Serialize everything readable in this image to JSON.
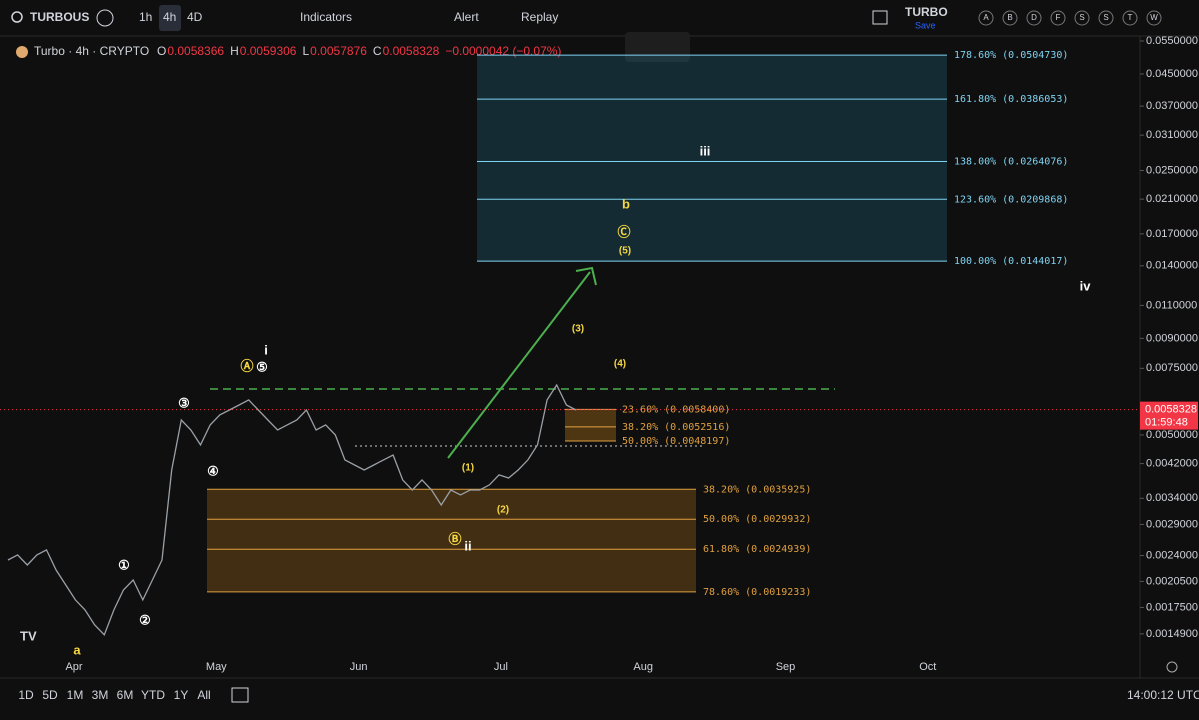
{
  "toolbar": {
    "symbol": "TURBOUS",
    "intervals": [
      "1h",
      "4h",
      "4D"
    ],
    "indicators": "Indicators",
    "alert": "Alert",
    "replay": "Replay",
    "layout_name": "TURBO",
    "save": "Save",
    "letters": [
      "A",
      "B",
      "D",
      "F",
      "S",
      "S",
      "T",
      "W"
    ]
  },
  "legend": {
    "title": "Turbo · 4h · CRYPTO",
    "items": [
      {
        "k": "O",
        "v": "0.0058366"
      },
      {
        "k": "H",
        "v": "0.0059306"
      },
      {
        "k": "L",
        "v": "0.0057876"
      },
      {
        "k": "C",
        "v": "0.0058328"
      }
    ],
    "change": "−0.0000042 (−0.07%)"
  },
  "chart": {
    "log": true,
    "ylim": [
      0.00131,
      0.0588
    ],
    "yticks": [
      {
        "value": 0.055,
        "label": "0.0550000"
      },
      {
        "value": 0.045,
        "label": "0.0450000"
      },
      {
        "value": 0.037,
        "label": "0.0370000"
      },
      {
        "value": 0.031,
        "label": "0.0310000"
      },
      {
        "value": 0.025,
        "label": "0.0250000"
      },
      {
        "value": 0.021,
        "label": "0.0210000"
      },
      {
        "value": 0.017,
        "label": "0.0170000"
      },
      {
        "value": 0.014,
        "label": "0.0140000"
      },
      {
        "value": 0.011,
        "label": "0.0110000"
      },
      {
        "value": 0.009,
        "label": "0.0090000"
      },
      {
        "value": 0.0075,
        "label": "0.0075000"
      },
      {
        "value": 0.005,
        "label": "0.0050000"
      },
      {
        "value": 0.0042,
        "label": "0.0042000"
      },
      {
        "value": 0.0034,
        "label": "0.0034000"
      },
      {
        "value": 0.0029,
        "label": "0.0029000"
      },
      {
        "value": 0.0024,
        "label": "0.0024000"
      },
      {
        "value": 0.00205,
        "label": "0.0020500"
      },
      {
        "value": 0.00175,
        "label": "0.0017500"
      },
      {
        "value": 0.00149,
        "label": "0.0014900"
      }
    ],
    "last_price": {
      "value": 0.0058328,
      "label": "0.0058328"
    },
    "countdown": "01:59:48",
    "months": [
      "Apr",
      "May",
      "Jun",
      "Jul",
      "Aug",
      "Sep",
      "Oct"
    ],
    "price_series": [
      0.002335,
      0.002409,
      0.002266,
      0.002409,
      0.002483,
      0.002198,
      0.002006,
      0.001832,
      0.001724,
      0.001574,
      0.001481,
      0.001724,
      0.001947,
      0.002068,
      0.001832,
      0.002068,
      0.002335,
      0.00404,
      0.005476,
      0.005152,
      0.004706,
      0.005314,
      0.005649,
      0.00582,
      0.006001,
      0.006187,
      0.00582,
      0.005476,
      0.005152,
      0.005314,
      0.005476,
      0.00582,
      0.005152,
      0.005314,
      0.005,
      0.004294,
      0.004165,
      0.00404,
      0.004165,
      0.004294,
      0.004425,
      0.003802,
      0.003577,
      0.003802,
      0.003577,
      0.003265,
      0.003577,
      0.003471,
      0.003577,
      0.003577,
      0.003688,
      0.00392,
      0.003847,
      0.00404,
      0.004294,
      0.004706,
      0.006187,
      0.006776,
      0.006001,
      0.00582
    ],
    "fib_upper": [
      {
        "value": 0.050473,
        "label": "178.60% (0.0504730)"
      },
      {
        "value": 0.0386053,
        "label": "161.80% (0.0386053)"
      },
      {
        "value": 0.0264076,
        "label": "138.00% (0.0264076)"
      },
      {
        "value": 0.0209868,
        "label": "123.60% (0.0209868)"
      },
      {
        "value": 0.0144017,
        "label": "100.00% (0.0144017)"
      }
    ],
    "fib_small": [
      {
        "value": 0.00584,
        "label": "23.60% (0.0058400)"
      },
      {
        "value": 0.0052516,
        "label": "38.20% (0.0052516)"
      },
      {
        "value": 0.0048197,
        "label": "50.00% (0.0048197)"
      }
    ],
    "fib_lower": [
      {
        "value": 0.0035925,
        "label": "38.20% (0.0035925)"
      },
      {
        "value": 0.0029932,
        "label": "50.00% (0.0029932)"
      },
      {
        "value": 0.0024939,
        "label": "61.80% (0.0024939)"
      },
      {
        "value": 0.0019233,
        "label": "78.60% (0.0019233)"
      }
    ],
    "waves": [
      "i",
      "Ⓐ",
      "⑤",
      "③",
      "④",
      "①",
      "②",
      "Ⓑ",
      "ii",
      "(1)",
      "(2)",
      "(3)",
      "(4)",
      "(5)",
      "Ⓒ",
      "b",
      "iii",
      "iv",
      "a"
    ]
  },
  "bottom": {
    "ranges": [
      "1D",
      "5D",
      "1M",
      "3M",
      "6M",
      "YTD",
      "1Y",
      "All"
    ],
    "clock": "14:00:12 UTC"
  }
}
